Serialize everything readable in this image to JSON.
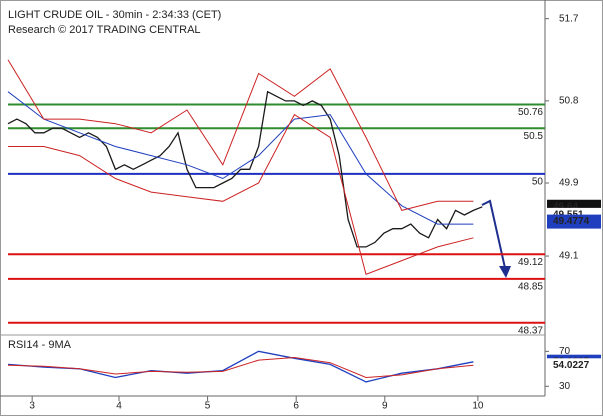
{
  "chart_data": [
    {
      "type": "line",
      "title": "LIGHT CRUDE OIL - 30min - 2:34:33 (CET)",
      "subtitle": "Research © 2017 TRADING CENTRAL",
      "xlim": [
        0,
        60
      ],
      "xticks": [
        {
          "value": 2.7,
          "label": "3"
        },
        {
          "value": 12.4,
          "label": "4"
        },
        {
          "value": 22.3,
          "label": "5"
        },
        {
          "value": 32.2,
          "label": "6"
        },
        {
          "value": 42.1,
          "label": "9"
        },
        {
          "value": 52.5,
          "label": "10"
        }
      ],
      "ylim": [
        48.29,
        51.85
      ],
      "yticks": [
        49.1,
        49.9,
        50.8,
        51.7
      ],
      "series": [
        {
          "color": "#1a1a1a",
          "x": [
            0,
            1,
            2,
            3,
            4,
            5,
            6,
            7,
            8,
            9,
            10,
            11,
            12,
            13,
            14,
            15,
            16,
            17,
            18,
            19,
            20,
            21,
            22,
            23,
            24,
            25,
            26,
            27,
            28,
            29,
            30,
            31,
            32,
            33,
            34,
            35,
            36,
            37,
            38,
            39,
            40,
            41,
            42,
            43,
            44,
            45,
            46,
            47,
            48,
            49,
            50,
            51,
            52,
            53
          ],
          "values": [
            50.55,
            50.6,
            50.55,
            50.45,
            50.45,
            50.5,
            50.5,
            50.45,
            50.4,
            50.45,
            50.4,
            50.3,
            50.05,
            50.1,
            50.05,
            50.1,
            50.15,
            50.2,
            50.3,
            50.45,
            50.05,
            49.85,
            49.85,
            49.85,
            49.9,
            49.95,
            50.05,
            50.05,
            50.3,
            50.9,
            50.85,
            50.8,
            50.8,
            50.75,
            50.8,
            50.75,
            50.6,
            50.2,
            49.5,
            49.2,
            49.2,
            49.25,
            49.35,
            49.4,
            49.4,
            49.45,
            49.35,
            49.3,
            49.5,
            49.4,
            49.6,
            49.55,
            49.6,
            49.64
          ]
        },
        {
          "color": "#1f3fbf",
          "x": [
            0,
            4,
            8,
            12,
            16,
            20,
            24,
            28,
            32,
            36,
            40,
            44,
            48,
            52
          ],
          "values": [
            50.9,
            50.6,
            50.45,
            50.3,
            50.2,
            50.1,
            49.95,
            50.2,
            50.6,
            50.65,
            50.0,
            49.65,
            49.45,
            49.45
          ]
        },
        {
          "color": "#cc2222",
          "x": [
            0,
            4,
            8,
            12,
            16,
            20,
            24,
            28,
            32,
            36,
            40,
            44,
            48,
            52
          ],
          "values": [
            51.25,
            50.6,
            50.6,
            50.55,
            50.45,
            50.7,
            50.1,
            51.1,
            50.85,
            51.15,
            50.4,
            49.6,
            49.7,
            49.7
          ]
        },
        {
          "color": "#cc2222",
          "x": [
            0,
            4,
            8,
            12,
            16,
            20,
            24,
            28,
            32,
            36,
            40,
            44,
            48,
            52
          ],
          "values": [
            50.3,
            50.3,
            50.2,
            49.95,
            49.8,
            49.75,
            49.7,
            49.9,
            50.65,
            50.4,
            48.9,
            49.05,
            49.2,
            49.3
          ]
        }
      ],
      "levels": [
        {
          "value": 50.76,
          "color": "#2e8b2e"
        },
        {
          "value": 50.5,
          "color": "#2e8b2e"
        },
        {
          "value": 50,
          "color": "#1f2fc0"
        },
        {
          "value": 49.12,
          "color": "#dd1111"
        },
        {
          "value": 48.85,
          "color": "#dd1111"
        },
        {
          "value": 48.37,
          "color": "#dd1111"
        }
      ],
      "markers": [
        {
          "value": 49.64,
          "color": "#111111",
          "filled": true
        },
        {
          "value": 49.551,
          "color": "#dd1111",
          "filled": false
        },
        {
          "value": 49.4774,
          "color": "#1f3fbf",
          "filled": true
        }
      ]
    },
    {
      "type": "line",
      "title": "RSI14 - 9MA",
      "xlim": [
        0,
        60
      ],
      "ylim": [
        20,
        83
      ],
      "yticks": [
        30,
        70
      ],
      "series": [
        {
          "color": "#1f3fbf",
          "x": [
            0,
            4,
            8,
            12,
            16,
            20,
            24,
            28,
            32,
            36,
            40,
            44,
            48,
            52
          ],
          "values": [
            55,
            52,
            50,
            40,
            48,
            45,
            48,
            70,
            62,
            55,
            35,
            45,
            50,
            58
          ]
        },
        {
          "color": "#cc2222",
          "x": [
            0,
            4,
            8,
            12,
            16,
            20,
            24,
            28,
            32,
            36,
            40,
            44,
            48,
            52
          ],
          "values": [
            54,
            53,
            50,
            44,
            47,
            46,
            47,
            60,
            63,
            57,
            40,
            43,
            50,
            54
          ]
        }
      ],
      "markers": [
        {
          "value": 58.1635,
          "color": "#1f3fbf",
          "filled": true
        },
        {
          "value": 54.0227,
          "color": "#dd1111",
          "filled": false
        }
      ]
    }
  ]
}
